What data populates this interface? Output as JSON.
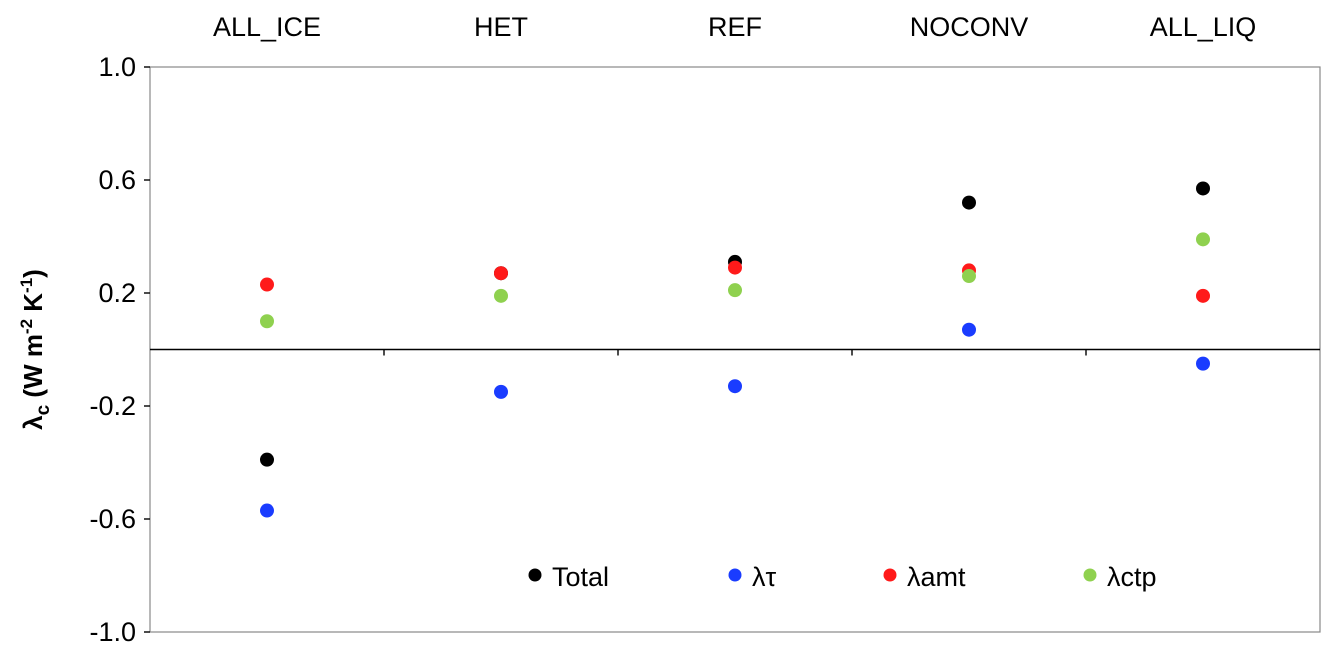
{
  "chart_data": {
    "type": "scatter",
    "categories": [
      "ALL_ICE",
      "HET",
      "REF",
      "NOCONV",
      "ALL_LIQ"
    ],
    "series": [
      {
        "name": "Total",
        "color": "#000000",
        "values": [
          -0.39,
          0.27,
          0.31,
          0.52,
          0.57
        ]
      },
      {
        "name": "λτ",
        "color": "#1a3cff",
        "values": [
          -0.57,
          -0.15,
          -0.13,
          0.07,
          -0.05
        ]
      },
      {
        "name": "λamt",
        "color": "#ff1a1a",
        "values": [
          0.23,
          0.27,
          0.29,
          0.28,
          0.19
        ]
      },
      {
        "name": "λctp",
        "color": "#8fd14f",
        "values": [
          0.1,
          0.19,
          0.21,
          0.26,
          0.39
        ]
      }
    ],
    "ylabel": {
      "main": "λ",
      "sub": "c",
      "rest": " (W m",
      "sup1": "-2",
      "rest2": " K",
      "sup2": "-1",
      "end": ")"
    },
    "ylim": [
      -1.0,
      1.0
    ],
    "yticks": [
      1.0,
      0.6,
      0.2,
      -0.2,
      -0.6,
      -1.0
    ],
    "ytick_labels": [
      "1.0",
      "0.6",
      "0.2",
      "-0.2",
      "-0.6",
      "-1.0"
    ],
    "legend_position": "bottom-inside",
    "grid": false
  }
}
